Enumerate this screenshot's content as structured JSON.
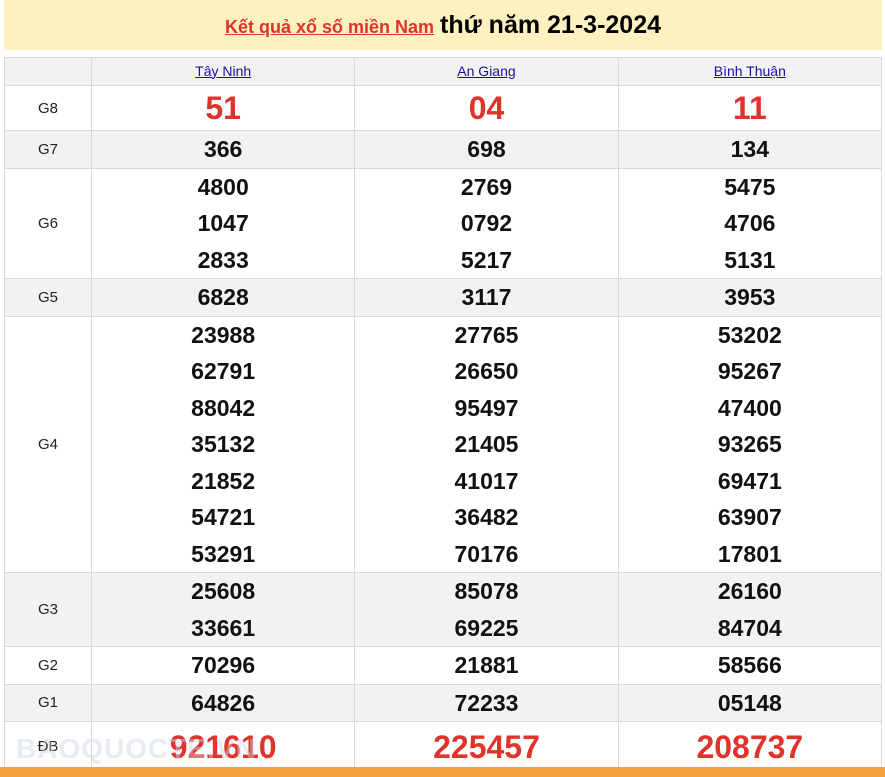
{
  "header": {
    "link": "Kết quả xổ số miền Nam",
    "date": "thứ năm 21-3-2024"
  },
  "provinces": [
    "Tây Ninh",
    "An Giang",
    "Bình Thuận"
  ],
  "prizes": [
    {
      "label": "G8",
      "style": "big",
      "values": [
        [
          "51"
        ],
        [
          "04"
        ],
        [
          "11"
        ]
      ]
    },
    {
      "label": "G7",
      "style": "n",
      "values": [
        [
          "366"
        ],
        [
          "698"
        ],
        [
          "134"
        ]
      ]
    },
    {
      "label": "G6",
      "style": "n",
      "values": [
        [
          "4800",
          "1047",
          "2833"
        ],
        [
          "2769",
          "0792",
          "5217"
        ],
        [
          "5475",
          "4706",
          "5131"
        ]
      ]
    },
    {
      "label": "G5",
      "style": "n",
      "values": [
        [
          "6828"
        ],
        [
          "3117"
        ],
        [
          "3953"
        ]
      ]
    },
    {
      "label": "G4",
      "style": "n",
      "values": [
        [
          "23988",
          "62791",
          "88042",
          "35132",
          "21852",
          "54721",
          "53291"
        ],
        [
          "27765",
          "26650",
          "95497",
          "21405",
          "41017",
          "36482",
          "70176"
        ],
        [
          "53202",
          "95267",
          "47400",
          "93265",
          "69471",
          "63907",
          "17801"
        ]
      ]
    },
    {
      "label": "G3",
      "style": "n",
      "values": [
        [
          "25608",
          "33661"
        ],
        [
          "85078",
          "69225"
        ],
        [
          "26160",
          "84704"
        ]
      ]
    },
    {
      "label": "G2",
      "style": "n",
      "values": [
        [
          "70296"
        ],
        [
          "21881"
        ],
        [
          "58566"
        ]
      ]
    },
    {
      "label": "G1",
      "style": "n",
      "values": [
        [
          "64826"
        ],
        [
          "72233"
        ],
        [
          "05148"
        ]
      ]
    },
    {
      "label": "ĐB",
      "style": "db",
      "values": [
        [
          "921610"
        ],
        [
          "225457"
        ],
        [
          "208737"
        ]
      ]
    }
  ],
  "watermark": "BAOQUOCTE.VN",
  "colors": {
    "accent": "#e0332b",
    "title_bg": "#fdf1bf",
    "footer": "#f4a23e"
  }
}
